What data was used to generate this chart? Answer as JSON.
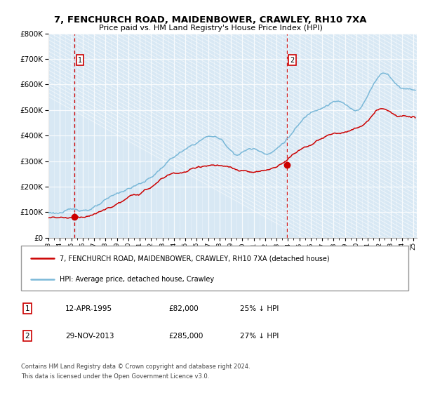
{
  "title": "7, FENCHURCH ROAD, MAIDENBOWER, CRAWLEY, RH10 7XA",
  "subtitle": "Price paid vs. HM Land Registry's House Price Index (HPI)",
  "legend_line1": "7, FENCHURCH ROAD, MAIDENBOWER, CRAWLEY, RH10 7XA (detached house)",
  "legend_line2": "HPI: Average price, detached house, Crawley",
  "transaction1_date": "12-APR-1995",
  "transaction1_price": "£82,000",
  "transaction1_hpi": "25% ↓ HPI",
  "transaction1_year": 1995.28,
  "transaction1_value": 82000,
  "transaction2_date": "29-NOV-2013",
  "transaction2_price": "£285,000",
  "transaction2_hpi": "27% ↓ HPI",
  "transaction2_year": 2013.91,
  "transaction2_value": 285000,
  "footnote1": "Contains HM Land Registry data © Crown copyright and database right 2024.",
  "footnote2": "This data is licensed under the Open Government Licence v3.0.",
  "plot_bg_color": "#d8e8f4",
  "hpi_color": "#7ab8d8",
  "price_color": "#cc0000",
  "dashed_line_color": "#cc0000",
  "ylim": [
    0,
    800000
  ],
  "xlim_start": 1993.0,
  "xlim_end": 2025.3
}
